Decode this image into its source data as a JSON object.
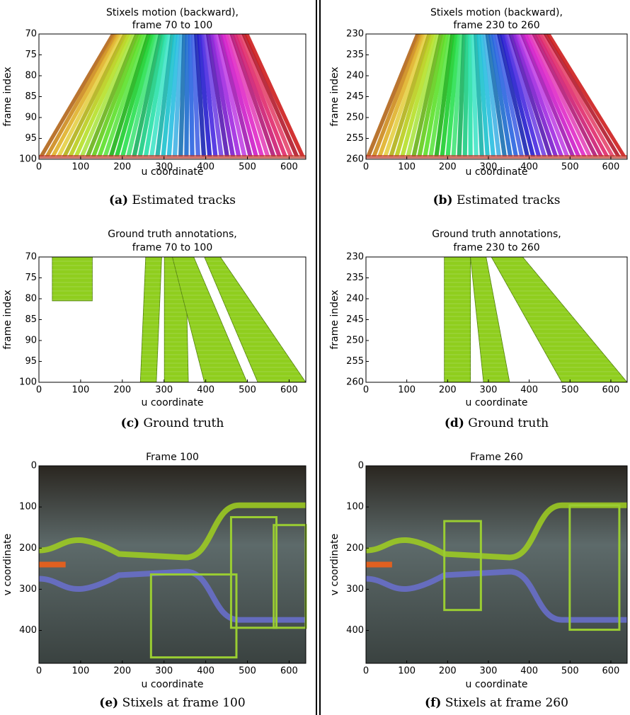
{
  "panels": [
    {
      "title": [
        "Stixels motion (backward),",
        "frame 70 to 100"
      ],
      "xlabel": "u coordinate",
      "ylabel": "frame index",
      "xlim": [
        0,
        640
      ],
      "ylim": [
        100,
        70
      ],
      "xticks": [
        0,
        100,
        200,
        300,
        400,
        500,
        600
      ],
      "yticks": [
        70,
        75,
        80,
        85,
        90,
        95,
        100
      ],
      "caption": {
        "label": "(a)",
        "text": "Estimated tracks"
      }
    },
    {
      "title": [
        "Stixels motion (backward),",
        "frame 230 to 260"
      ],
      "xlabel": "u coordinate",
      "ylabel": "frame index",
      "xlim": [
        0,
        640
      ],
      "ylim": [
        260,
        230
      ],
      "xticks": [
        0,
        100,
        200,
        300,
        400,
        500,
        600
      ],
      "yticks": [
        230,
        235,
        240,
        245,
        250,
        255,
        260
      ],
      "caption": {
        "label": "(b)",
        "text": "Estimated tracks"
      }
    },
    {
      "title": [
        "Ground truth annotations,",
        "frame 70 to 100"
      ],
      "xlabel": "u coordinate",
      "ylabel": "frame index",
      "xlim": [
        0,
        640
      ],
      "ylim": [
        100,
        70
      ],
      "xticks": [
        0,
        100,
        200,
        300,
        400,
        500,
        600
      ],
      "yticks": [
        70,
        75,
        80,
        85,
        90,
        95,
        100
      ],
      "caption": {
        "label": "(c)",
        "text": "Ground truth"
      }
    },
    {
      "title": [
        "Ground truth annotations,",
        "frame 230 to 260"
      ],
      "xlabel": "u coordinate",
      "ylabel": "frame index",
      "xlim": [
        0,
        640
      ],
      "ylim": [
        260,
        230
      ],
      "xticks": [
        0,
        100,
        200,
        300,
        400,
        500,
        600
      ],
      "yticks": [
        230,
        235,
        240,
        245,
        250,
        255,
        260
      ],
      "caption": {
        "label": "(d)",
        "text": "Ground truth"
      }
    },
    {
      "title": [
        "Frame 100"
      ],
      "xlabel": "u coordinate",
      "ylabel": "v coordinate",
      "xlim": [
        0,
        640
      ],
      "ylim": [
        480,
        0
      ],
      "xticks": [
        0,
        100,
        200,
        300,
        400,
        500,
        600
      ],
      "yticks": [
        0,
        100,
        200,
        300,
        400
      ],
      "caption": {
        "label": "(e)",
        "text": "Stixels at frame 100"
      }
    },
    {
      "title": [
        "Frame 260"
      ],
      "xlabel": "u coordinate",
      "ylabel": "v coordinate",
      "xlim": [
        0,
        640
      ],
      "ylim": [
        480,
        0
      ],
      "xticks": [
        0,
        100,
        200,
        300,
        400,
        500,
        600
      ],
      "yticks": [
        0,
        100,
        200,
        300,
        400
      ],
      "caption": {
        "label": "(f)",
        "text": "Stixels at frame 260"
      }
    }
  ]
}
